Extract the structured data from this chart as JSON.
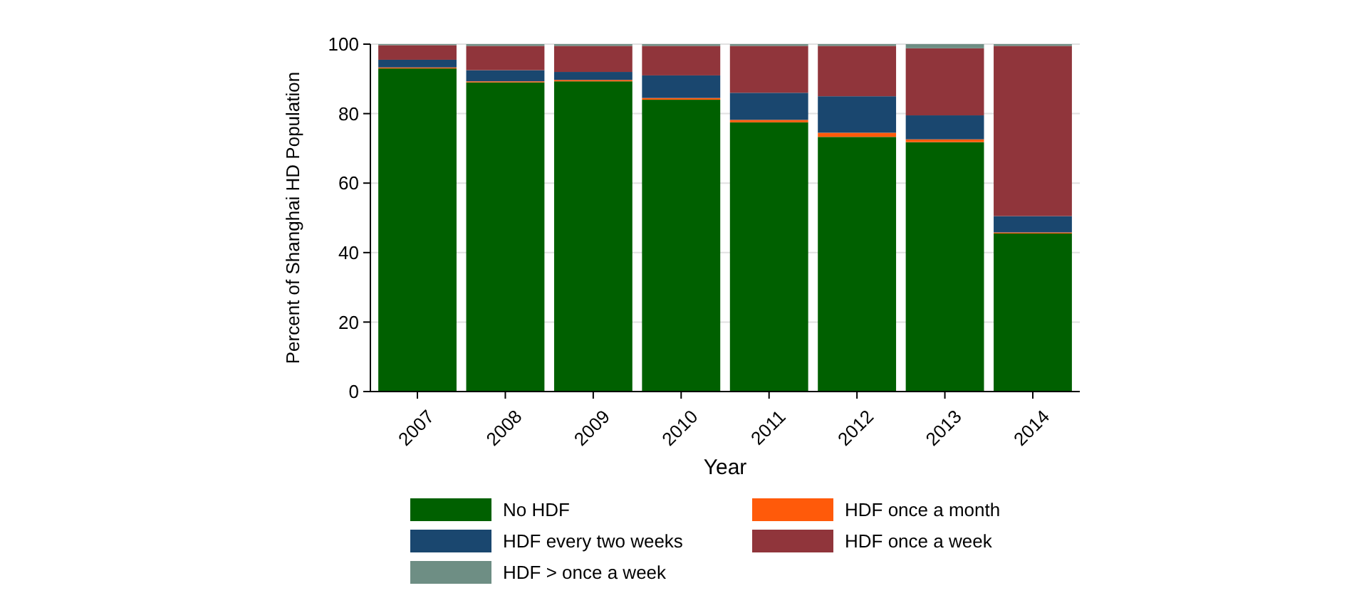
{
  "chart_data": {
    "type": "bar",
    "stacked": true,
    "xlabel": "Year",
    "ylabel": "Percent of Shanghai HD Population",
    "categories": [
      "2007",
      "2008",
      "2009",
      "2010",
      "2011",
      "2012",
      "2013",
      "2014"
    ],
    "series": [
      {
        "name": "No HDF",
        "color": "#006000",
        "values": [
          93,
          89,
          89.3,
          84,
          77.5,
          73.3,
          71.8,
          45.5
        ]
      },
      {
        "name": "HDF once a month",
        "color": "#ff5a0a",
        "values": [
          0.3,
          0.3,
          0.4,
          0.5,
          0.7,
          1.2,
          0.8,
          0.3
        ]
      },
      {
        "name": "HDF every two weeks",
        "color": "#1a476f",
        "values": [
          2.2,
          3.2,
          2.3,
          6.5,
          7.8,
          10.5,
          6.9,
          4.7
        ]
      },
      {
        "name": "HDF once a week",
        "color": "#90353b",
        "values": [
          4.2,
          7,
          7.5,
          8.5,
          13.5,
          14.5,
          19.3,
          49
        ]
      },
      {
        "name": "HDF > once a week",
        "color": "#6e8e84",
        "values": [
          0.3,
          0.5,
          0.5,
          0.5,
          0.5,
          0.5,
          1.2,
          0.5
        ]
      }
    ],
    "ylim": [
      0,
      100
    ],
    "yticks": [
      0,
      20,
      40,
      60,
      80,
      100
    ],
    "grid": "y",
    "legend": "bottom"
  }
}
